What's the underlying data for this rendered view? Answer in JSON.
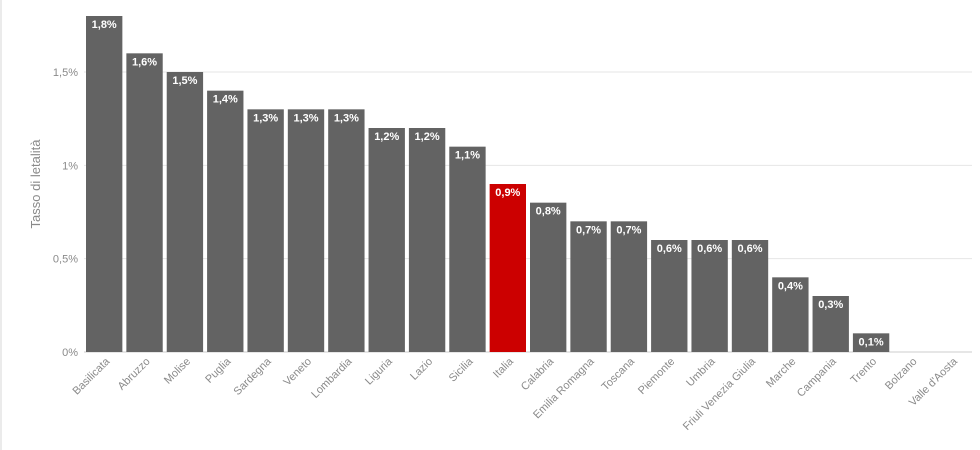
{
  "chart_data": {
    "type": "bar",
    "title": "",
    "xlabel": "",
    "ylabel": "Tasso di letalità",
    "ylim": [
      0,
      1.8
    ],
    "yticks": [
      {
        "value": 0,
        "label": "0%"
      },
      {
        "value": 0.5,
        "label": "0,5%"
      },
      {
        "value": 1,
        "label": "1%"
      },
      {
        "value": 1.5,
        "label": "1,5%"
      }
    ],
    "grid": true,
    "categories": [
      "Basilicata",
      "Abruzzo",
      "Molise",
      "Puglia",
      "Sardegna",
      "Veneto",
      "Lombardia",
      "Liguria",
      "Lazio",
      "Sicilia",
      "Italia",
      "Calabria",
      "Emilia Romagna",
      "Toscana",
      "Piemonte",
      "Umbria",
      "Friuli Venezia Giulia",
      "Marche",
      "Campania",
      "Trento",
      "Bolzano",
      "Valle d'Aosta"
    ],
    "values": [
      1.8,
      1.6,
      1.5,
      1.4,
      1.3,
      1.3,
      1.3,
      1.2,
      1.2,
      1.1,
      0.9,
      0.8,
      0.7,
      0.7,
      0.6,
      0.6,
      0.6,
      0.4,
      0.3,
      0.1,
      0,
      0
    ],
    "data_labels": [
      "1,8%",
      "1,6%",
      "1,5%",
      "1,4%",
      "1,3%",
      "1,3%",
      "1,3%",
      "1,2%",
      "1,2%",
      "1,1%",
      "0,9%",
      "0,8%",
      "0,7%",
      "0,7%",
      "0,6%",
      "0,6%",
      "0,6%",
      "0,4%",
      "0,3%",
      "0,1%",
      "",
      ""
    ],
    "highlight_category": "Italia",
    "colors": {
      "bar": "#636363",
      "highlight": "#cc0000"
    }
  }
}
